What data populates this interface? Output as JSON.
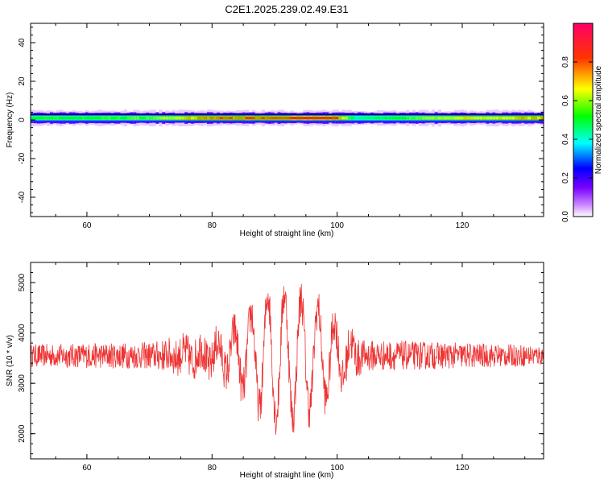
{
  "title": "C2E1.2025.239.02.49.E31",
  "colorbar": {
    "label": "Normalized spectral amplitude",
    "range": [
      0.0,
      1.0
    ],
    "ticks": [
      "0.0",
      "0.2",
      "0.4",
      "0.6",
      "0.8"
    ],
    "tick_values": [
      0.0,
      0.2,
      0.4,
      0.6,
      0.8
    ],
    "colormap": [
      "#ffffff",
      "#7700ff",
      "#0000ff",
      "#00ffff",
      "#00ff00",
      "#ffff00",
      "#ff0000",
      "#ff0066"
    ]
  },
  "chart_data": [
    {
      "type": "heatmap",
      "xlabel": "Height of straight line (km)",
      "ylabel": "Frequency (Hz)",
      "xlim": [
        51,
        133
      ],
      "ylim": [
        -50,
        50
      ],
      "xticks": [
        60,
        80,
        100,
        120
      ],
      "xtick_labels": [
        "60",
        "80",
        "100",
        "120"
      ],
      "yticks": [
        -40,
        -20,
        0,
        20,
        40
      ],
      "ytick_labels": [
        "-40",
        "-20",
        "0",
        "20",
        "40"
      ],
      "band": {
        "center_hz": 1,
        "description_points": [
          {
            "x": 51,
            "amp": 0.55
          },
          {
            "x": 60,
            "amp": 0.55
          },
          {
            "x": 70,
            "amp": 0.6
          },
          {
            "x": 80,
            "amp": 0.8
          },
          {
            "x": 90,
            "amp": 0.85
          },
          {
            "x": 96,
            "amp": 0.9
          },
          {
            "x": 100,
            "amp": 0.85
          },
          {
            "x": 103,
            "amp": 0.45
          },
          {
            "x": 110,
            "amp": 0.55
          },
          {
            "x": 120,
            "amp": 0.7
          },
          {
            "x": 133,
            "amp": 0.75
          }
        ]
      }
    },
    {
      "type": "line",
      "xlabel": "Height of straight line (km)",
      "ylabel": "SNR (10 * v/v)",
      "xlim": [
        51,
        133
      ],
      "ylim": [
        1500,
        5400
      ],
      "xticks": [
        60,
        80,
        100,
        120
      ],
      "xtick_labels": [
        "60",
        "80",
        "100",
        "120"
      ],
      "yticks": [
        2000,
        3000,
        4000,
        5000
      ],
      "ytick_labels": [
        "2000",
        "3000",
        "4000",
        "5000"
      ],
      "color": "#ee3333",
      "baseline": 3550,
      "envelope": [
        {
          "x": 51,
          "amp": 250
        },
        {
          "x": 70,
          "amp": 300
        },
        {
          "x": 76,
          "amp": 450
        },
        {
          "x": 82,
          "amp": 700
        },
        {
          "x": 86,
          "amp": 1300
        },
        {
          "x": 89,
          "amp": 1800
        },
        {
          "x": 93,
          "amp": 1800
        },
        {
          "x": 98,
          "amp": 1400
        },
        {
          "x": 101,
          "amp": 900
        },
        {
          "x": 104,
          "amp": 350
        },
        {
          "x": 133,
          "amp": 230
        }
      ]
    }
  ]
}
